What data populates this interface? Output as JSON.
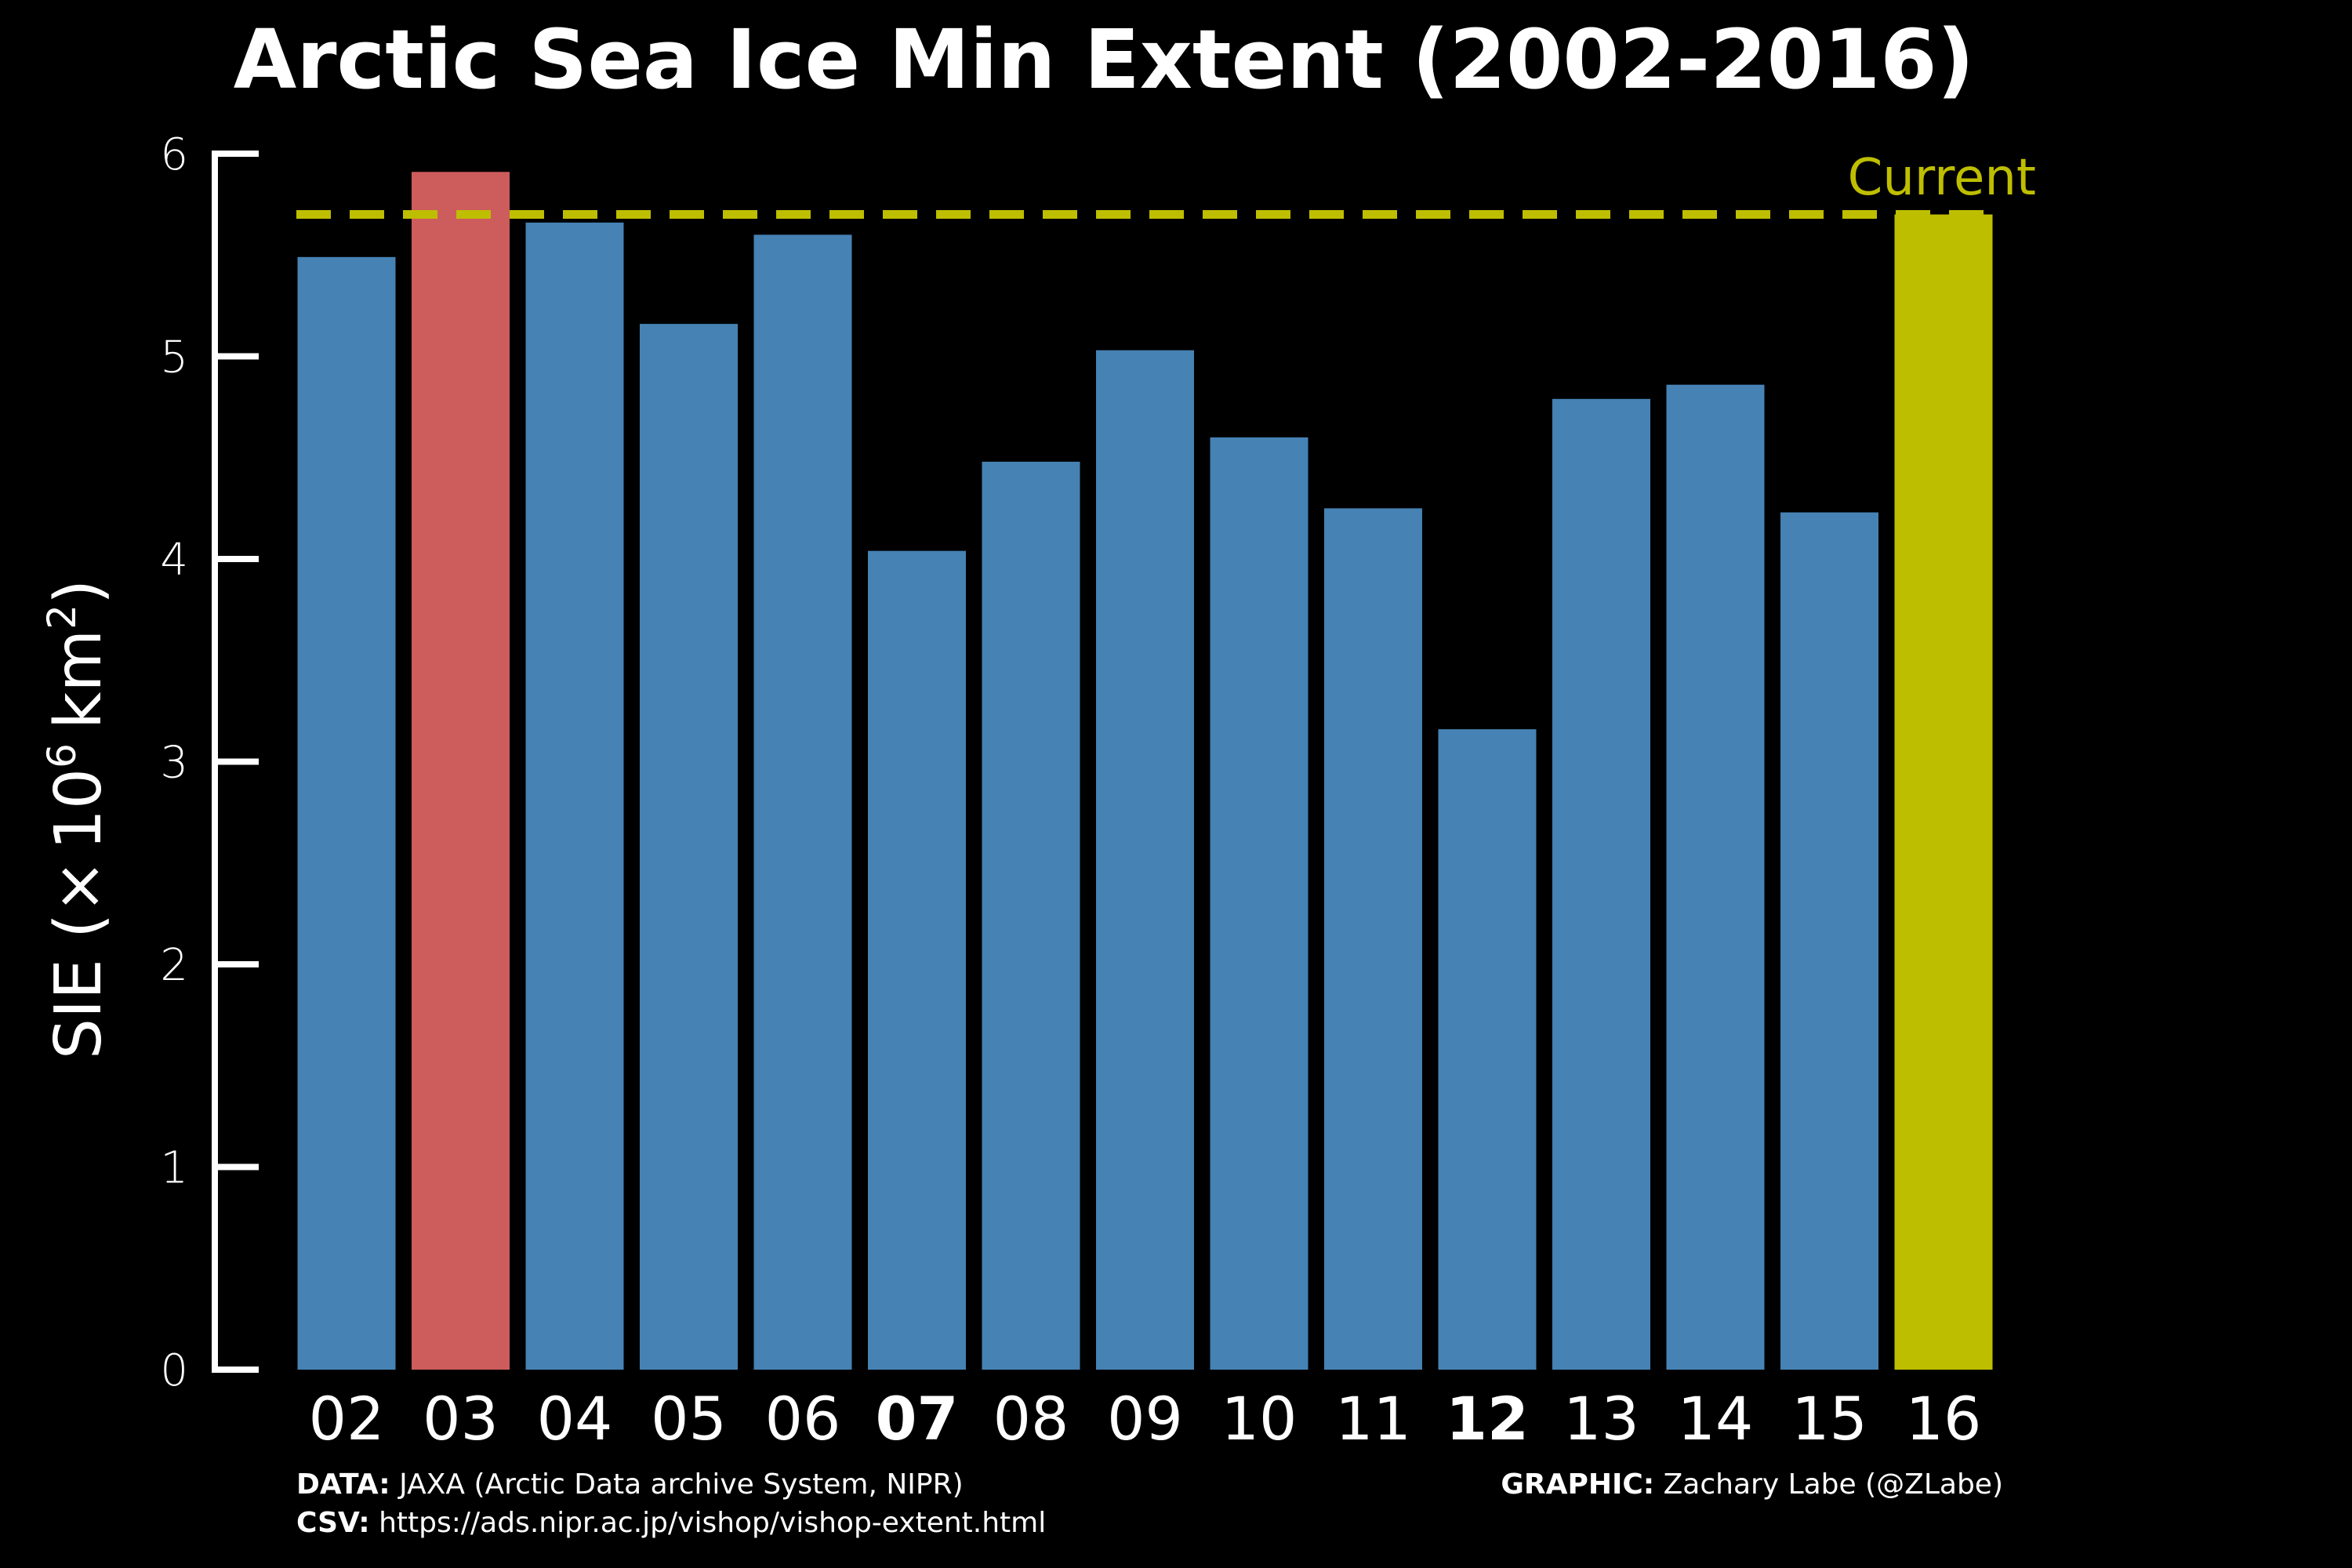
{
  "chart_data": {
    "type": "bar",
    "title": "Arctic Sea Ice Min Extent (2002-2016)",
    "xlabel": "",
    "ylabel": "SIE (",
    "ylabel_parts": {
      "times": "×",
      "base": "10",
      "exp": "6",
      "unit": "km",
      "unit_exp": "2",
      "close": ")"
    },
    "ylim": [
      0,
      6
    ],
    "yticks": [
      0,
      1,
      2,
      3,
      4,
      5,
      6
    ],
    "grid": false,
    "categories": [
      "02",
      "03",
      "04",
      "05",
      "06",
      "07",
      "08",
      "09",
      "10",
      "11",
      "12",
      "13",
      "14",
      "15",
      "16"
    ],
    "values": [
      5.49,
      5.91,
      5.66,
      5.16,
      5.6,
      4.04,
      4.48,
      5.03,
      4.6,
      4.25,
      3.16,
      4.79,
      4.86,
      4.23,
      5.7
    ],
    "bold_categories": [
      "07",
      "12"
    ],
    "highlight": {
      "max_category": "03",
      "current_category": "16"
    },
    "reference_line": {
      "value": 5.7,
      "label": "Current",
      "style": "dashed"
    },
    "colors": {
      "background": "#000000",
      "bar": "#4682b4",
      "max_bar": "#cd5c5c",
      "current_bar": "#bebe00",
      "reference_line": "#bebe00",
      "text": "#ffffff",
      "axis": "#ffffff"
    }
  },
  "credits": {
    "data_key": "DATA:",
    "data_value": "JAXA (Arctic Data archive System, NIPR)",
    "csv_key": "CSV:",
    "csv_value": "https://ads.nipr.ac.jp/vishop/vishop-extent.html",
    "graphic_key": "GRAPHIC:",
    "graphic_value": "Zachary Labe (@ZLabe)"
  }
}
